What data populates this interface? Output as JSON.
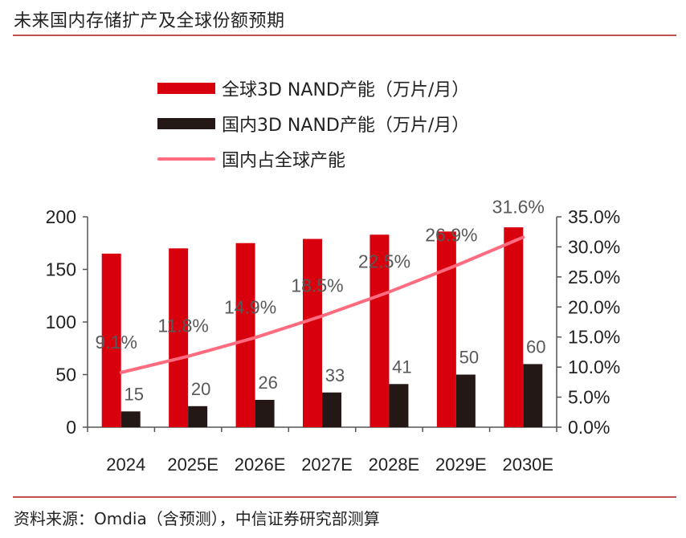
{
  "header": {
    "title": "未来国内存储扩产及全球份额预期"
  },
  "footer": {
    "source": "资料来源：Omdia（含预测），中信证券研究部测算"
  },
  "colors": {
    "global": "#d9000d",
    "domestic": "#231815",
    "share": "#ff6b7f",
    "axis": "#555555",
    "label": "#595959",
    "rule": "#c0504d"
  },
  "chart_data": {
    "type": "bar",
    "title": "未来国内存储扩产及全球份额预期",
    "categories": [
      "2024",
      "2025E",
      "2026E",
      "2027E",
      "2028E",
      "2029E",
      "2030E"
    ],
    "series": [
      {
        "name": "全球3D NAND产能（万片/月）",
        "type": "bar",
        "axis": "left",
        "values": [
          165,
          170,
          175,
          179,
          183,
          186,
          190
        ]
      },
      {
        "name": "国内3D NAND产能（万片/月）",
        "type": "bar",
        "axis": "left",
        "values": [
          15,
          20,
          26,
          33,
          41,
          50,
          60
        ],
        "labels": [
          "15",
          "20",
          "26",
          "33",
          "41",
          "50",
          "60"
        ]
      },
      {
        "name": "国内占全球产能",
        "type": "line",
        "axis": "right",
        "values": [
          9.1,
          11.8,
          14.9,
          18.5,
          22.5,
          26.9,
          31.6
        ],
        "labels": [
          "9.1%",
          "11.8%",
          "14.9%",
          "18.5%",
          "22.5%",
          "26.9%",
          "31.6%"
        ]
      }
    ],
    "left_axis": {
      "ylim": [
        0,
        200
      ],
      "ticks": [
        "0",
        "50",
        "100",
        "150",
        "200"
      ]
    },
    "right_axis": {
      "ylim": [
        0,
        35
      ],
      "ticks": [
        "0.0%",
        "5.0%",
        "10.0%",
        "15.0%",
        "20.0%",
        "25.0%",
        "30.0%",
        "35.0%"
      ]
    },
    "xlabel": "",
    "ylabel": "",
    "grid": false,
    "legend_position": "top"
  }
}
